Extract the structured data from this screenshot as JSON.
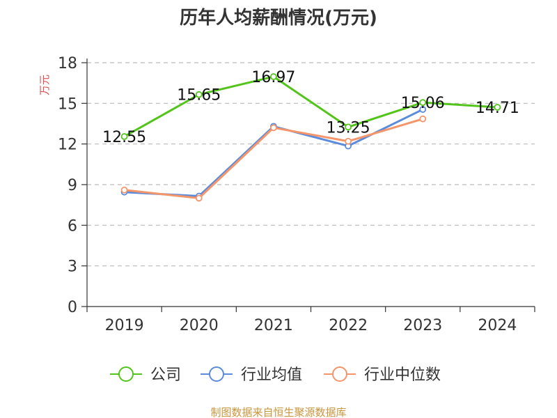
{
  "chart_data": {
    "type": "line",
    "title": "历年人均薪酬情况(万元)",
    "ylabel": "万元",
    "xlabel": "",
    "categories": [
      "2019",
      "2020",
      "2021",
      "2022",
      "2023",
      "2024"
    ],
    "ylim": [
      0,
      18
    ],
    "yticks": [
      0,
      3,
      6,
      9,
      12,
      15,
      18
    ],
    "grid": true,
    "legend_position": "bottom",
    "series": [
      {
        "name": "公司",
        "color": "#52c41a",
        "values": [
          12.55,
          15.65,
          16.97,
          13.25,
          15.06,
          14.71
        ],
        "labels": [
          "12.55",
          "15.65",
          "16.97",
          "13.25",
          "15.06",
          "14.71"
        ]
      },
      {
        "name": "行业均值",
        "color": "#5b8bdc",
        "values": [
          8.45,
          8.15,
          13.3,
          11.85,
          14.55,
          null
        ]
      },
      {
        "name": "行业中位数",
        "color": "#f4956a",
        "values": [
          8.6,
          8.0,
          13.2,
          12.2,
          13.85,
          null
        ]
      }
    ]
  },
  "source": {
    "text": "制图数据来自恒生聚源数据库",
    "color": "#c8963c"
  },
  "colors": {
    "axis": "#333333",
    "grid": "#bbbbbb",
    "ylabel": "#e05050"
  }
}
